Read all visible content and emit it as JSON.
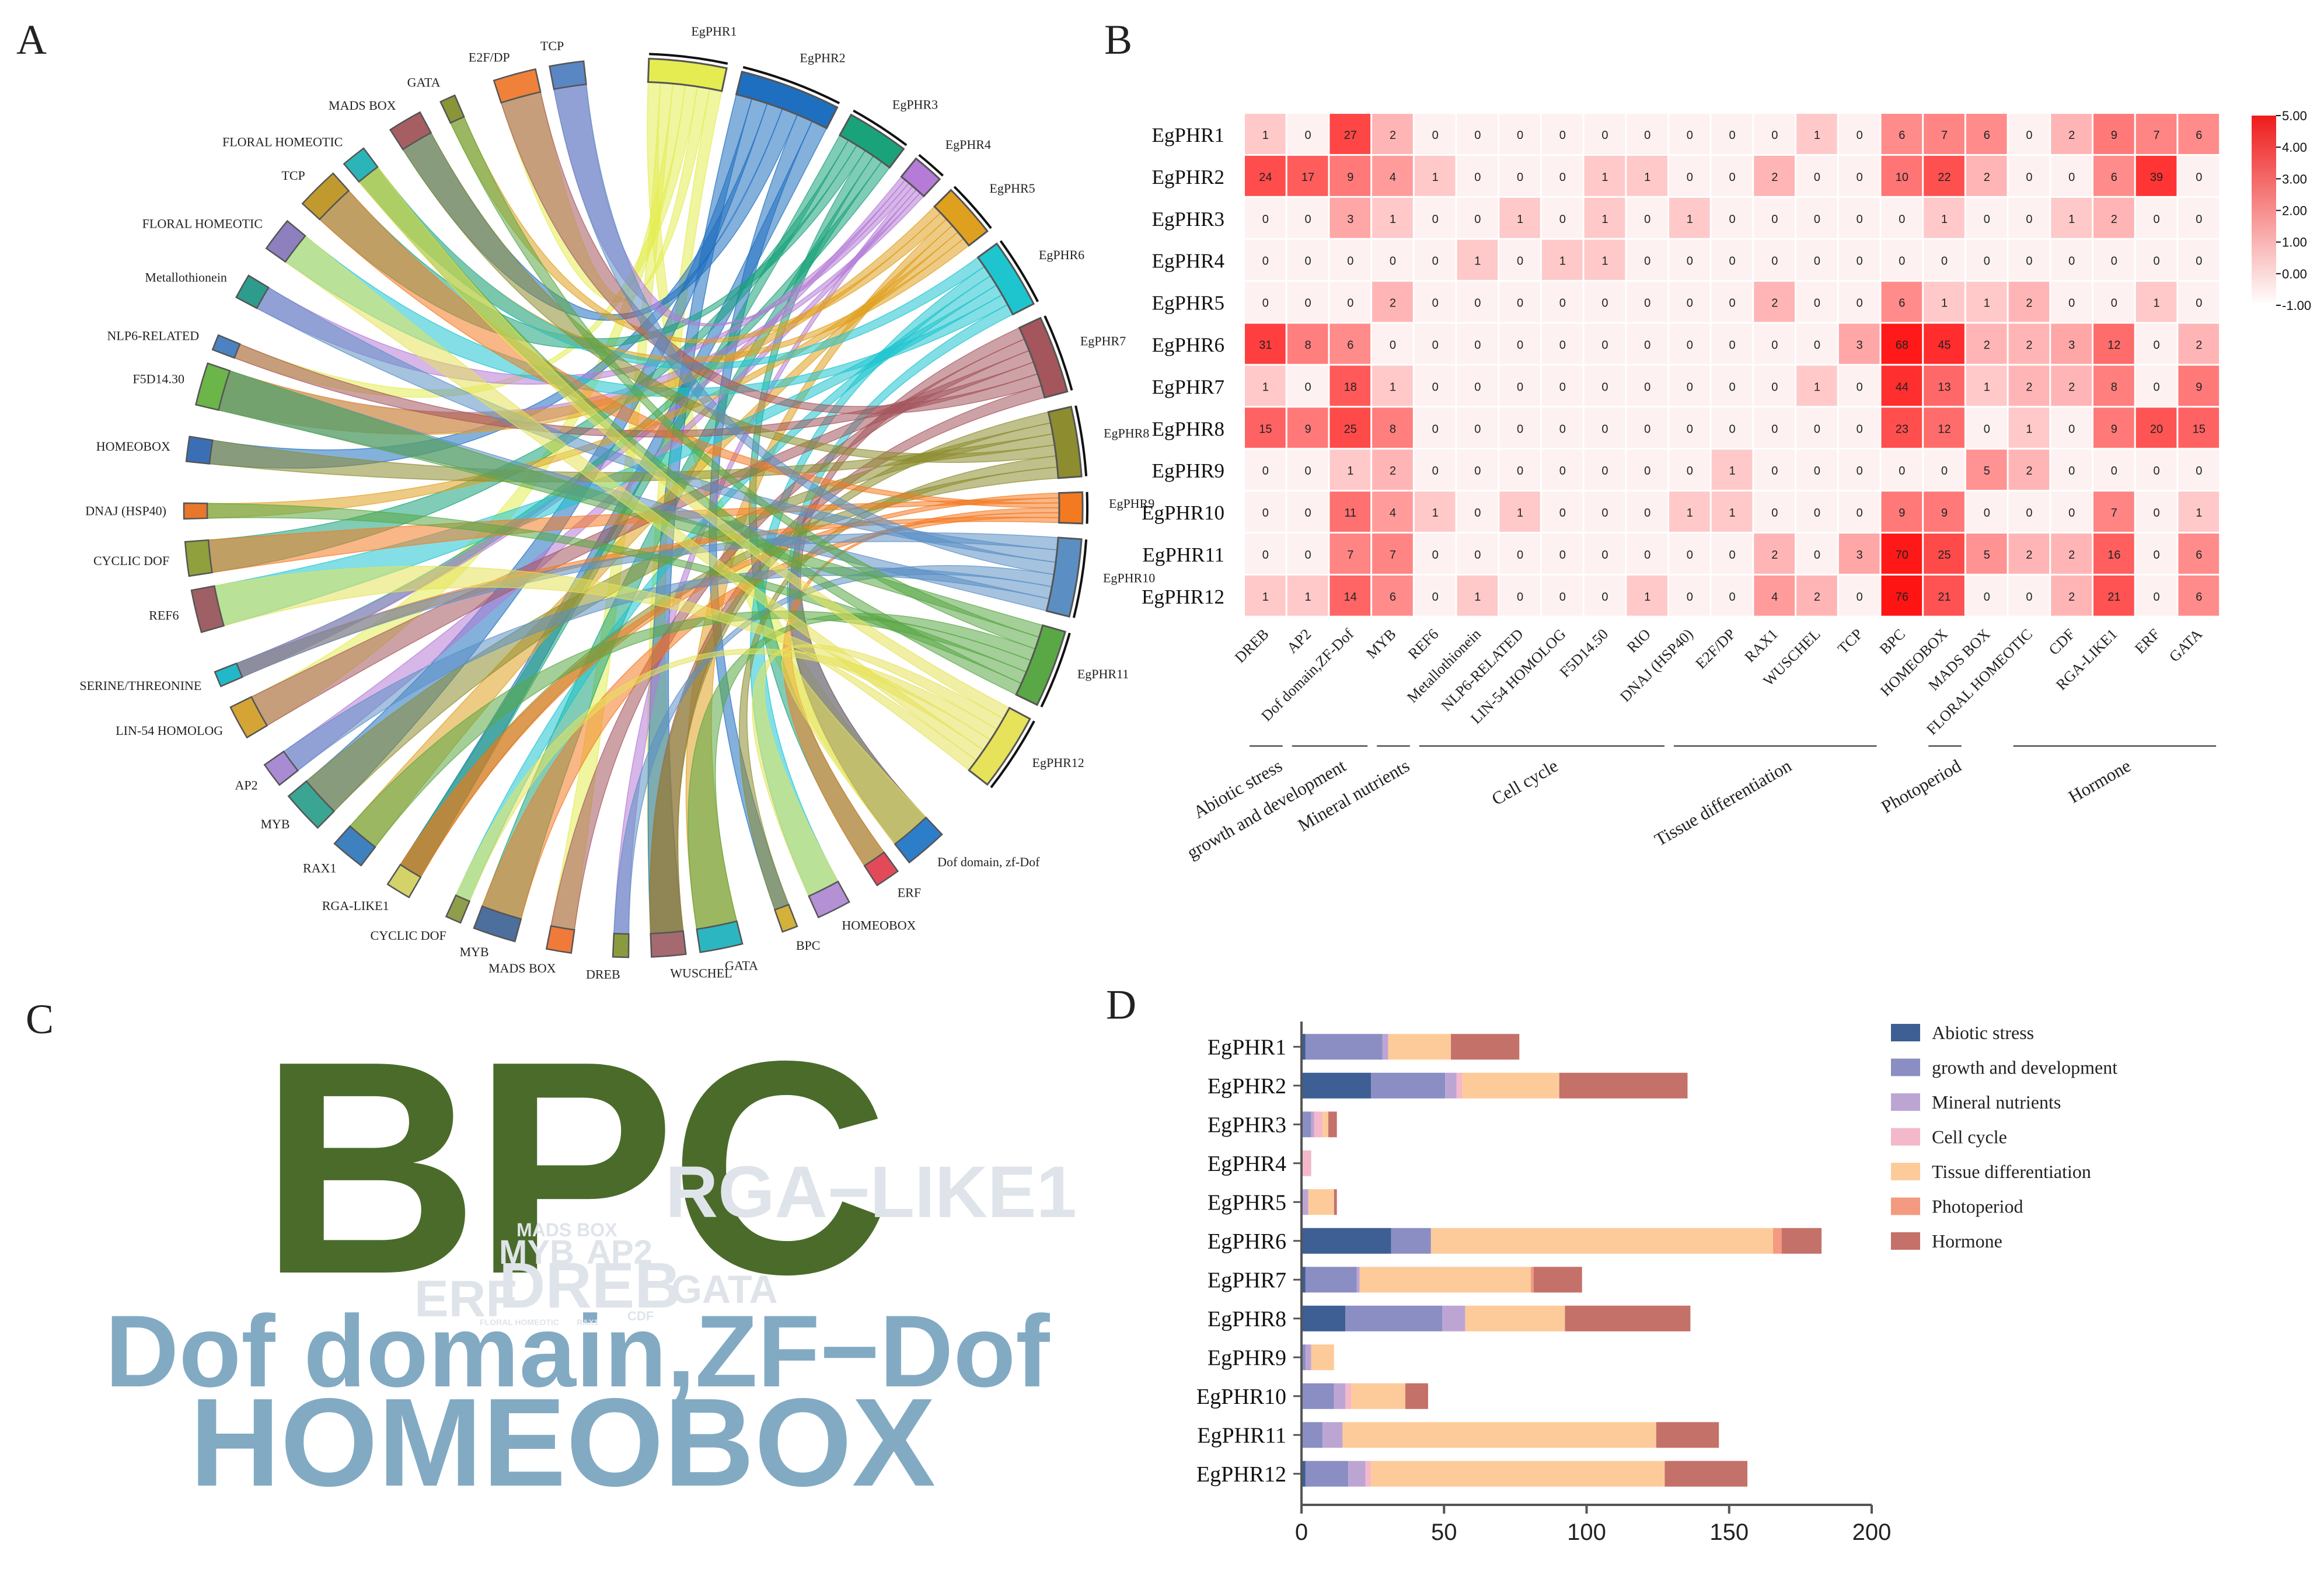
{
  "panel_labels": {
    "a": "A",
    "b": "B",
    "c": "C",
    "d": "D"
  },
  "chart_data": [
    {
      "type": "chord",
      "panel": "A",
      "genes": [
        "EgPHR1",
        "EgPHR2",
        "EgPHR3",
        "EgPHR4",
        "EgPHR5",
        "EgPHR6",
        "EgPHR7",
        "EgPHR8",
        "EgPHR9",
        "EgPHR10",
        "EgPHR11",
        "EgPHR12"
      ],
      "elements": [
        "Dof domain, zf-Dof",
        "ERF",
        "HOMEOBOX",
        "BPC",
        "GATA",
        "WUSCHEL",
        "DREB",
        "MADS BOX",
        "MYB",
        "CYCLIC DOF",
        "RGA-LIKE1",
        "RAX1",
        "MYB",
        "AP2",
        "LIN-54 HOMOLOG",
        "SERINE/THREONINE",
        "REF6",
        "CYCLIC DOF",
        "DNAJ (HSP40)",
        "HOMEOBOX",
        "F5D14.30",
        "NLP6-RELATED",
        "Metallothionein",
        "FLORAL HOMEOTIC",
        "TCP",
        "FLORAL HOMEOTIC",
        "MADS BOX",
        "GATA",
        "E2F/DP",
        "TCP"
      ]
    },
    {
      "type": "heatmap",
      "panel": "B",
      "rows": [
        "EgPHR1",
        "EgPHR2",
        "EgPHR3",
        "EgPHR4",
        "EgPHR5",
        "EgPHR6",
        "EgPHR7",
        "EgPHR8",
        "EgPHR9",
        "EgPHR10",
        "EgPHR11",
        "EgPHR12"
      ],
      "columns": [
        "DREB",
        "AP2",
        "Dof domain,ZF-Dof",
        "MYB",
        "REF6",
        "Metallothionein",
        "NLP6-RELATED",
        "LIN-54 HOMOLOG",
        "F5D14.50",
        "RIO",
        "DNAJ (HSP40)",
        "E2F/DP",
        "RAX1",
        "WUSCHEL",
        "TCP",
        "BPC",
        "HOMEOBOX",
        "MADS BOX",
        "FLORAL HOMEOTIC",
        "CDF",
        "RGA-LIKE1",
        "ERF",
        "GATA"
      ],
      "values": [
        [
          1,
          0,
          27,
          2,
          0,
          0,
          0,
          0,
          0,
          0,
          0,
          0,
          0,
          1,
          0,
          6,
          7,
          6,
          0,
          2,
          9,
          7,
          6
        ],
        [
          24,
          17,
          9,
          4,
          1,
          0,
          0,
          0,
          1,
          1,
          0,
          0,
          2,
          0,
          0,
          10,
          22,
          2,
          0,
          0,
          6,
          39,
          0
        ],
        [
          0,
          0,
          3,
          1,
          0,
          0,
          1,
          0,
          1,
          0,
          1,
          0,
          0,
          0,
          0,
          0,
          1,
          0,
          0,
          1,
          2,
          0,
          0
        ],
        [
          0,
          0,
          0,
          0,
          0,
          1,
          0,
          1,
          1,
          0,
          0,
          0,
          0,
          0,
          0,
          0,
          0,
          0,
          0,
          0,
          0,
          0,
          0
        ],
        [
          0,
          0,
          0,
          2,
          0,
          0,
          0,
          0,
          0,
          0,
          0,
          0,
          2,
          0,
          0,
          6,
          1,
          1,
          2,
          0,
          0,
          1,
          0
        ],
        [
          31,
          8,
          6,
          0,
          0,
          0,
          0,
          0,
          0,
          0,
          0,
          0,
          0,
          0,
          3,
          68,
          45,
          2,
          2,
          3,
          12,
          0,
          2
        ],
        [
          1,
          0,
          18,
          1,
          0,
          0,
          0,
          0,
          0,
          0,
          0,
          0,
          0,
          1,
          0,
          44,
          13,
          1,
          2,
          2,
          8,
          0,
          9
        ],
        [
          15,
          9,
          25,
          8,
          0,
          0,
          0,
          0,
          0,
          0,
          0,
          0,
          0,
          0,
          0,
          23,
          12,
          0,
          1,
          0,
          9,
          20,
          15
        ],
        [
          0,
          0,
          1,
          2,
          0,
          0,
          0,
          0,
          0,
          0,
          0,
          1,
          0,
          0,
          0,
          0,
          0,
          5,
          2,
          0,
          0,
          0,
          0
        ],
        [
          0,
          0,
          11,
          4,
          1,
          0,
          1,
          0,
          0,
          0,
          1,
          1,
          0,
          0,
          0,
          9,
          9,
          0,
          0,
          0,
          7,
          0,
          1
        ],
        [
          0,
          0,
          7,
          7,
          0,
          0,
          0,
          0,
          0,
          0,
          0,
          0,
          2,
          0,
          3,
          70,
          25,
          5,
          2,
          2,
          16,
          0,
          6
        ],
        [
          1,
          1,
          14,
          6,
          0,
          1,
          0,
          0,
          0,
          1,
          0,
          0,
          4,
          2,
          0,
          76,
          21,
          0,
          0,
          2,
          21,
          0,
          6
        ]
      ],
      "colorbar_ticks": [
        "5.00",
        "4.00",
        "3.00",
        "2.00",
        "1.00",
        "0.00",
        "-1.00"
      ],
      "colorbar_range": [
        -1,
        5
      ],
      "categories": [
        {
          "name": "Abiotic stress",
          "from": 0,
          "to": 0
        },
        {
          "name": "growth and development",
          "from": 1,
          "to": 2
        },
        {
          "name": "Mineral nutrients",
          "from": 3,
          "to": 3
        },
        {
          "name": "Cell cycle",
          "from": 4,
          "to": 9
        },
        {
          "name": "Tissue differentiation",
          "from": 10,
          "to": 14
        },
        {
          "name": "Photoperiod",
          "from": 16,
          "to": 16
        },
        {
          "name": "Hormone",
          "from": 18,
          "to": 22
        }
      ]
    },
    {
      "type": "wordcloud",
      "panel": "C",
      "words": [
        {
          "text": "BPC",
          "weight": 100,
          "color": "#4a6b2a"
        },
        {
          "text": "HOMEOBOX",
          "weight": 60,
          "color": "#82aac3"
        },
        {
          "text": "Dof domain,ZF−Dof",
          "weight": 42,
          "color": "#82aac3"
        },
        {
          "text": "RGA−LIKE1",
          "weight": 26,
          "color": "#dfe4ea"
        },
        {
          "text": "DREB",
          "weight": 20,
          "color": "#dfe4ea"
        },
        {
          "text": "ERF",
          "weight": 16,
          "color": "#dfe4ea"
        },
        {
          "text": "GATA",
          "weight": 14,
          "color": "#dfe4ea"
        },
        {
          "text": "MYB",
          "weight": 12,
          "color": "#dfe4ea"
        },
        {
          "text": "AP2",
          "weight": 11,
          "color": "#dfe4ea"
        },
        {
          "text": "MADS BOX",
          "weight": 6,
          "color": "#dfe4ea"
        },
        {
          "text": "FLORAL HOMEOTIC",
          "weight": 3,
          "color": "#dfe4ea"
        },
        {
          "text": "RAX1",
          "weight": 3,
          "color": "#dfe4ea"
        },
        {
          "text": "CDF",
          "weight": 3,
          "color": "#dfe4ea"
        }
      ]
    },
    {
      "type": "bar",
      "orientation": "horizontal",
      "stacked": true,
      "panel": "D",
      "categories": [
        "EgPHR1",
        "EgPHR2",
        "EgPHR3",
        "EgPHR4",
        "EgPHR5",
        "EgPHR6",
        "EgPHR7",
        "EgPHR8",
        "EgPHR9",
        "EgPHR10",
        "EgPHR11",
        "EgPHR12"
      ],
      "series": [
        {
          "name": "Abiotic stress",
          "color": "#3e5f94",
          "values": [
            1,
            24,
            0,
            0,
            0,
            31,
            1,
            15,
            0,
            0,
            0,
            1
          ]
        },
        {
          "name": "growth and development",
          "color": "#8b8ec2",
          "values": [
            27,
            26,
            3,
            0,
            0,
            14,
            18,
            34,
            1,
            11,
            7,
            15
          ]
        },
        {
          "name": "Mineral nutrients",
          "color": "#bda5d3",
          "values": [
            2,
            4,
            1,
            0,
            2,
            0,
            1,
            8,
            2,
            4,
            7,
            6
          ]
        },
        {
          "name": "Cell cycle",
          "color": "#f3b8c9",
          "values": [
            0,
            2,
            3,
            3,
            0,
            0,
            0,
            0,
            0,
            2,
            0,
            2
          ]
        },
        {
          "name": "Tissue differentiation",
          "color": "#fdcb9a",
          "values": [
            22,
            34,
            2,
            0,
            9,
            120,
            60,
            35,
            8,
            19,
            110,
            103
          ]
        },
        {
          "name": "Photoperiod",
          "color": "#f49a80",
          "values": [
            0,
            0,
            0,
            0,
            0,
            3,
            1,
            0,
            0,
            0,
            0,
            0
          ]
        },
        {
          "name": "Hormone",
          "color": "#c47169",
          "values": [
            24,
            45,
            3,
            0,
            1,
            14,
            17,
            44,
            0,
            8,
            22,
            29
          ]
        }
      ],
      "xlim": [
        0,
        200
      ],
      "xticks": [
        "0",
        "50",
        "100",
        "150",
        "200"
      ]
    }
  ]
}
